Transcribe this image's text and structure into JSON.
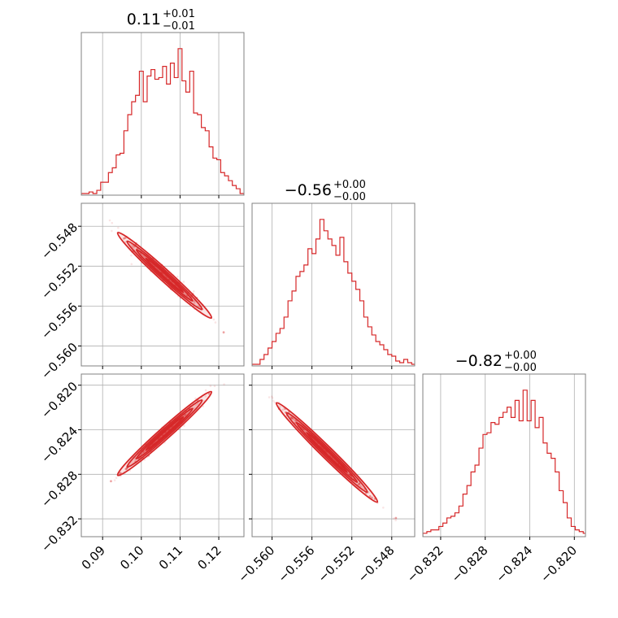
{
  "chart_data": {
    "type": "corner",
    "color": "#d62728",
    "grid": true,
    "parameters": [
      {
        "range": [
          0.0845,
          0.1265
        ],
        "ticks": [
          0.09,
          0.1,
          0.11,
          0.12
        ],
        "tick_labels": [
          "0.09",
          "0.10",
          "0.11",
          "0.12"
        ]
      },
      {
        "range": [
          -0.562,
          -0.5457
        ],
        "ticks": [
          -0.56,
          -0.556,
          -0.552,
          -0.548
        ],
        "tick_labels": [
          "−0.560",
          "−0.556",
          "−0.552",
          "−0.548"
        ]
      },
      {
        "range": [
          -0.8336,
          -0.819
        ],
        "ticks": [
          -0.832,
          -0.828,
          -0.824,
          -0.82
        ],
        "tick_labels": [
          "−0.832",
          "−0.828",
          "−0.824",
          "−0.820"
        ]
      }
    ],
    "titles": [
      {
        "value": "0.11",
        "plus": "+0.01",
        "minus": "−0.01"
      },
      {
        "value": "−0.56",
        "plus": "+0.00",
        "minus": "−0.00"
      },
      {
        "value": "−0.82",
        "plus": "+0.00",
        "minus": "−0.00"
      }
    ],
    "histograms": [
      {
        "bin_start": 0.0845,
        "bin_width": 0.001,
        "counts": [
          1,
          1,
          2,
          1,
          3,
          8,
          8,
          14,
          17,
          25,
          26,
          40,
          50,
          58,
          62,
          77,
          58,
          74,
          78,
          72,
          73,
          80,
          69,
          82,
          73,
          91,
          71,
          64,
          77,
          51,
          50,
          42,
          40,
          30,
          23,
          22,
          14,
          12,
          9,
          6,
          4,
          1
        ]
      },
      {
        "bin_start": -0.562,
        "bin_width": 0.0004,
        "counts": [
          1,
          1,
          4,
          7,
          11,
          15,
          20,
          23,
          30,
          40,
          46,
          55,
          58,
          62,
          72,
          69,
          78,
          90,
          83,
          78,
          74,
          68,
          79,
          64,
          57,
          52,
          47,
          40,
          30,
          24,
          19,
          15,
          13,
          10,
          7,
          6,
          3,
          2,
          4,
          2,
          1
        ]
      },
      {
        "bin_start": -0.8336,
        "bin_width": 0.00036,
        "counts": [
          2,
          3,
          4,
          4,
          6,
          8,
          11,
          12,
          14,
          18,
          25,
          30,
          38,
          42,
          52,
          60,
          61,
          67,
          66,
          70,
          73,
          76,
          70,
          80,
          68,
          86,
          68,
          80,
          64,
          70,
          55,
          49,
          46,
          38,
          27,
          20,
          11,
          6,
          4,
          3,
          2
        ]
      }
    ],
    "scatter_pairs": [
      {
        "x_param": 0,
        "y_param": 1,
        "slope": -0.353,
        "intercept": -0.5155,
        "sigma_x": 0.0055,
        "mean_x": 0.106,
        "scatter": 0.00045
      },
      {
        "x_param": 0,
        "y_param": 2,
        "slope": 0.31,
        "intercept": -0.8572,
        "sigma_x": 0.0055,
        "mean_x": 0.106,
        "scatter": 0.0003
      },
      {
        "x_param": 1,
        "y_param": 2,
        "slope": -0.88,
        "intercept": -1.314,
        "sigma_x": 0.0023,
        "mean_x": -0.5545,
        "scatter": 0.00015
      }
    ]
  }
}
